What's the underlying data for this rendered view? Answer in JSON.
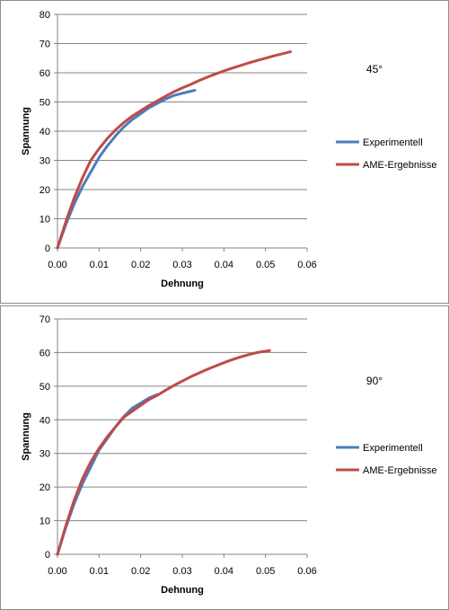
{
  "chart_data": [
    {
      "type": "line",
      "annotation": "45°",
      "xlabel": "Dehnung",
      "ylabel": "Spannung",
      "xlim": [
        0,
        0.06
      ],
      "ylim": [
        0,
        80
      ],
      "xticks": [
        "0.00",
        "0.01",
        "0.02",
        "0.03",
        "0.04",
        "0.05",
        "0.06"
      ],
      "yticks": [
        "0",
        "10",
        "20",
        "30",
        "40",
        "50",
        "60",
        "70",
        "80"
      ],
      "grid": "horizontal",
      "legend_position": "right",
      "series": [
        {
          "name": "Experimentell",
          "color": "#4a7ebb",
          "x": [
            0,
            0.002,
            0.004,
            0.006,
            0.008,
            0.01,
            0.012,
            0.014,
            0.016,
            0.018,
            0.02,
            0.022,
            0.024,
            0.026,
            0.028,
            0.03,
            0.033
          ],
          "y": [
            0,
            8,
            15,
            21,
            26,
            31,
            35,
            38.5,
            41.5,
            44,
            46,
            48,
            49.5,
            51,
            52.2,
            53,
            54
          ]
        },
        {
          "name": "AME-Ergebnisse",
          "color": "#be4b48",
          "x": [
            0,
            0.002,
            0.004,
            0.006,
            0.008,
            0.01,
            0.012,
            0.014,
            0.016,
            0.018,
            0.02,
            0.022,
            0.024,
            0.026,
            0.028,
            0.03,
            0.032,
            0.034,
            0.036,
            0.038,
            0.04,
            0.042,
            0.044,
            0.046,
            0.048,
            0.05,
            0.052,
            0.054,
            0.056
          ],
          "y": [
            0,
            9,
            17,
            24,
            30,
            34,
            37.5,
            40.5,
            43,
            45.2,
            47,
            48.8,
            50.4,
            52,
            53.5,
            54.8,
            56,
            57.3,
            58.5,
            59.6,
            60.6,
            61.6,
            62.5,
            63.4,
            64.2,
            65,
            65.8,
            66.5,
            67.2
          ]
        }
      ]
    },
    {
      "type": "line",
      "annotation": "90°",
      "xlabel": "Dehnung",
      "ylabel": "Spannung",
      "xlim": [
        0,
        0.06
      ],
      "ylim": [
        0,
        70
      ],
      "xticks": [
        "0.00",
        "0.01",
        "0.02",
        "0.03",
        "0.04",
        "0.05",
        "0.06"
      ],
      "yticks": [
        "0",
        "10",
        "20",
        "30",
        "40",
        "50",
        "60",
        "70"
      ],
      "grid": "horizontal",
      "legend_position": "right",
      "series": [
        {
          "name": "Experimentell",
          "color": "#4a7ebb",
          "x": [
            0,
            0.002,
            0.004,
            0.006,
            0.008,
            0.01,
            0.012,
            0.014,
            0.016,
            0.018,
            0.02,
            0.022,
            0.024
          ],
          "y": [
            0,
            8,
            15,
            21,
            26,
            31,
            34.5,
            38,
            41,
            43.5,
            45,
            46.5,
            47.5
          ]
        },
        {
          "name": "AME-Ergebnisse",
          "color": "#be4b48",
          "x": [
            0,
            0.002,
            0.004,
            0.006,
            0.008,
            0.01,
            0.012,
            0.014,
            0.016,
            0.018,
            0.02,
            0.022,
            0.024,
            0.026,
            0.028,
            0.03,
            0.032,
            0.034,
            0.036,
            0.038,
            0.04,
            0.042,
            0.044,
            0.046,
            0.048,
            0.051
          ],
          "y": [
            0,
            8.5,
            16,
            22.5,
            27.5,
            31.5,
            35,
            38,
            40.8,
            42.6,
            44.3,
            46,
            47.3,
            48.8,
            50.2,
            51.5,
            52.8,
            53.9,
            55,
            56,
            57,
            57.9,
            58.7,
            59.4,
            60,
            60.6
          ]
        }
      ]
    }
  ]
}
